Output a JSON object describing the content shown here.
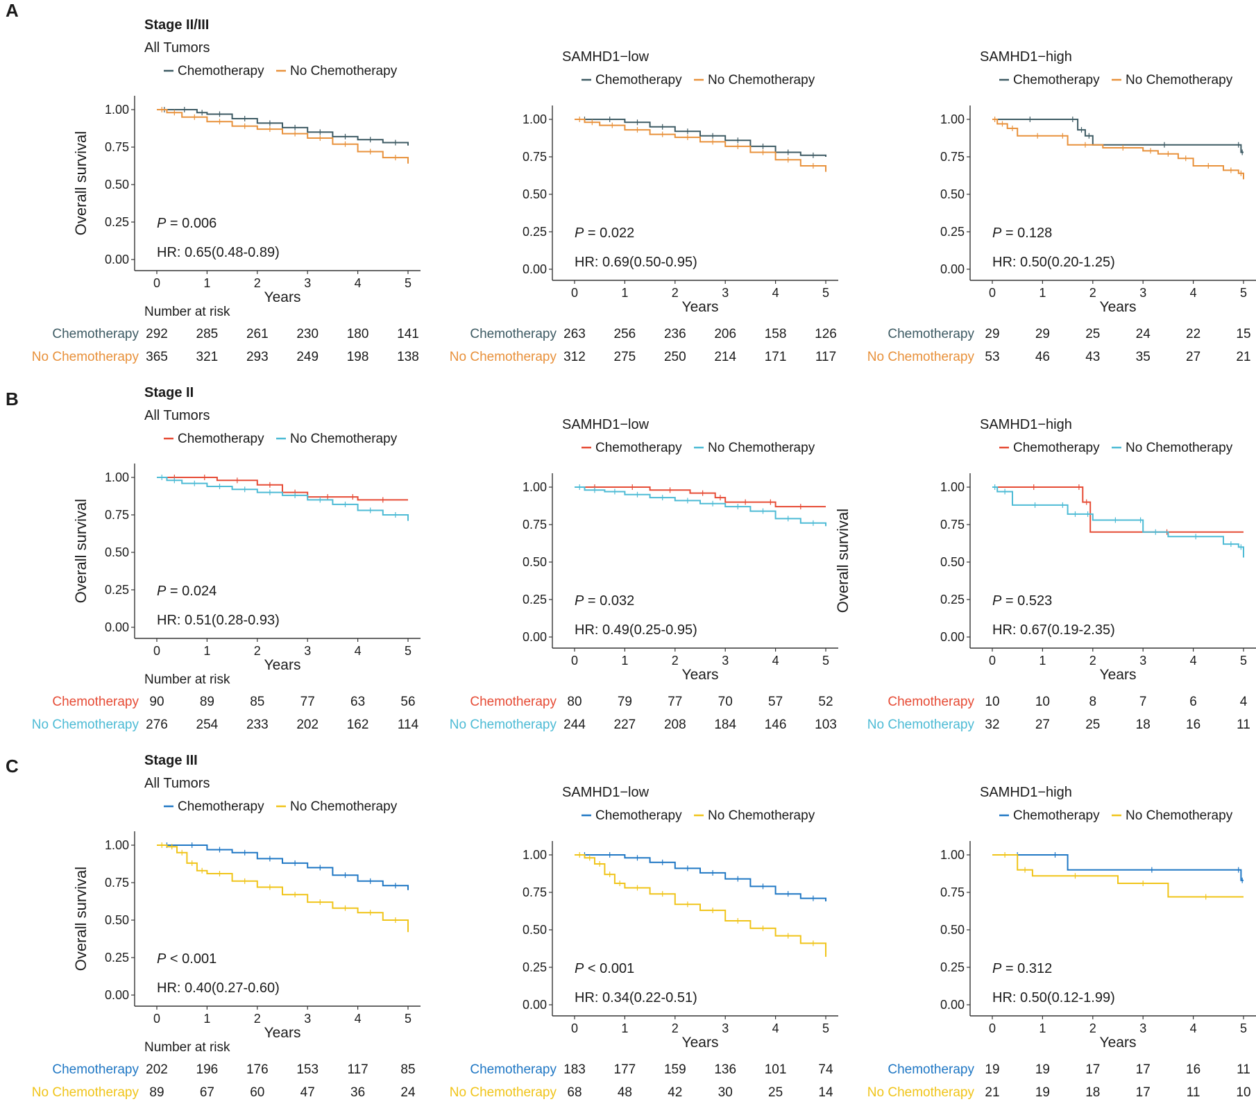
{
  "figure": {
    "panel_letters": [
      "A",
      "B",
      "C"
    ],
    "ylabel": "Overall survival",
    "xlabel": "Years",
    "risk_title": "Number at risk",
    "x_ticks": [
      "0",
      "1",
      "2",
      "3",
      "4",
      "5"
    ],
    "y_ticks": [
      "0.00",
      "0.25",
      "0.50",
      "0.75",
      "1.00"
    ]
  },
  "chart_data": [
    {
      "type": "line",
      "panel": "A",
      "stage_title": "Stage II/III",
      "subtitle": "All Tumors",
      "xlabel": "Years",
      "ylabel": "Overall survival",
      "xlim": [
        0,
        5
      ],
      "ylim": [
        0,
        1
      ],
      "legend": [
        "Chemotherapy",
        "No Chemotherapy"
      ],
      "colors": [
        "#3d5a63",
        "#e8913b"
      ],
      "p_prefix": "P",
      "p_value": " = 0.006",
      "hr": "HR: 0.65(0.48-0.89)",
      "series": [
        {
          "name": "Chemotherapy",
          "x": [
            0,
            0.3,
            0.8,
            1.0,
            1.5,
            2.0,
            2.5,
            3.0,
            3.5,
            4.0,
            4.5,
            5.0
          ],
          "y": [
            1.0,
            1.0,
            0.98,
            0.97,
            0.94,
            0.91,
            0.88,
            0.85,
            0.82,
            0.8,
            0.78,
            0.76
          ]
        },
        {
          "name": "No Chemotherapy",
          "x": [
            0,
            0.2,
            0.5,
            1.0,
            1.5,
            2.0,
            2.5,
            3.0,
            3.5,
            4.0,
            4.5,
            5.0
          ],
          "y": [
            1.0,
            0.98,
            0.95,
            0.92,
            0.89,
            0.87,
            0.84,
            0.81,
            0.77,
            0.72,
            0.68,
            0.64
          ]
        }
      ],
      "risk": {
        "labels": [
          "Chemotherapy",
          "No Chemotherapy"
        ],
        "rows": [
          [
            "292",
            "285",
            "261",
            "230",
            "180",
            "141"
          ],
          [
            "365",
            "321",
            "293",
            "249",
            "198",
            "138"
          ]
        ]
      }
    },
    {
      "type": "line",
      "panel": "A",
      "stage_title": "",
      "subtitle": "SAMHD1−low",
      "xlabel": "Years",
      "ylabel": "",
      "xlim": [
        0,
        5
      ],
      "ylim": [
        0,
        1
      ],
      "legend": [
        "Chemotherapy",
        "No Chemotherapy"
      ],
      "colors": [
        "#3d5a63",
        "#e8913b"
      ],
      "p_prefix": "P",
      "p_value": " = 0.022",
      "hr": "HR: 0.69(0.50-0.95)",
      "series": [
        {
          "name": "Chemotherapy",
          "x": [
            0,
            0.4,
            1.0,
            1.5,
            2.0,
            2.5,
            3.0,
            3.5,
            4.0,
            4.5,
            5.0
          ],
          "y": [
            1.0,
            1.0,
            0.98,
            0.95,
            0.92,
            0.89,
            0.86,
            0.82,
            0.78,
            0.76,
            0.75
          ]
        },
        {
          "name": "No Chemotherapy",
          "x": [
            0,
            0.2,
            0.5,
            1.0,
            1.5,
            2.0,
            2.5,
            3.0,
            3.5,
            4.0,
            4.5,
            5.0
          ],
          "y": [
            1.0,
            0.98,
            0.96,
            0.93,
            0.9,
            0.88,
            0.85,
            0.82,
            0.78,
            0.73,
            0.69,
            0.65
          ]
        }
      ],
      "risk": {
        "labels": [
          "Chemotherapy",
          "No Chemotherapy"
        ],
        "rows": [
          [
            "263",
            "256",
            "236",
            "206",
            "158",
            "126"
          ],
          [
            "312",
            "275",
            "250",
            "214",
            "171",
            "117"
          ]
        ]
      }
    },
    {
      "type": "line",
      "panel": "A",
      "stage_title": "",
      "subtitle": "SAMHD1−high",
      "xlabel": "Years",
      "ylabel": "",
      "xlim": [
        0,
        5
      ],
      "ylim": [
        0,
        1
      ],
      "legend": [
        "Chemotherapy",
        "No Chemotherapy"
      ],
      "colors": [
        "#3d5a63",
        "#e8913b"
      ],
      "p_prefix": "P",
      "p_value": " = 0.128",
      "hr": "HR: 0.50(0.20-1.25)",
      "series": [
        {
          "name": "Chemotherapy",
          "x": [
            0,
            1.5,
            1.7,
            1.85,
            2.0,
            4.85,
            4.95,
            5.0
          ],
          "y": [
            1.0,
            1.0,
            0.93,
            0.89,
            0.83,
            0.83,
            0.78,
            0.78
          ]
        },
        {
          "name": "No Chemotherapy",
          "x": [
            0,
            0.1,
            0.3,
            0.5,
            1.3,
            1.5,
            2.2,
            3.0,
            3.3,
            3.7,
            4.0,
            4.6,
            4.9,
            5.0
          ],
          "y": [
            1.0,
            0.97,
            0.94,
            0.89,
            0.89,
            0.83,
            0.81,
            0.79,
            0.77,
            0.74,
            0.69,
            0.66,
            0.64,
            0.6
          ]
        }
      ],
      "risk": {
        "labels": [
          "Chemotherapy",
          "No Chemotherapy"
        ],
        "rows": [
          [
            "29",
            "29",
            "25",
            "24",
            "22",
            "15"
          ],
          [
            "53",
            "46",
            "43",
            "35",
            "27",
            "21"
          ]
        ]
      }
    },
    {
      "type": "line",
      "panel": "B",
      "stage_title": "Stage II",
      "subtitle": "All Tumors",
      "xlabel": "Years",
      "ylabel": "Overall survival",
      "xlim": [
        0,
        5
      ],
      "ylim": [
        0,
        1
      ],
      "legend": [
        "Chemotherapy",
        "No Chemotherapy"
      ],
      "colors": [
        "#e64b35",
        "#4dbbd5"
      ],
      "p_prefix": "P",
      "p_value": " = 0.024",
      "hr": "HR: 0.51(0.28-0.93)",
      "series": [
        {
          "name": "Chemotherapy",
          "x": [
            0,
            0.7,
            1.2,
            2.0,
            2.5,
            3.0,
            3.8,
            4.0,
            5.0
          ],
          "y": [
            1.0,
            1.0,
            0.98,
            0.95,
            0.9,
            0.87,
            0.87,
            0.85,
            0.85
          ]
        },
        {
          "name": "No Chemotherapy",
          "x": [
            0,
            0.2,
            0.5,
            1.0,
            1.5,
            2.0,
            2.5,
            3.0,
            3.5,
            4.0,
            4.5,
            5.0
          ],
          "y": [
            1.0,
            0.98,
            0.96,
            0.94,
            0.92,
            0.9,
            0.88,
            0.85,
            0.82,
            0.78,
            0.75,
            0.71
          ]
        }
      ],
      "risk": {
        "labels": [
          "Chemotherapy",
          "No Chemotherapy"
        ],
        "rows": [
          [
            "90",
            "89",
            "85",
            "77",
            "63",
            "56"
          ],
          [
            "276",
            "254",
            "233",
            "202",
            "162",
            "114"
          ]
        ]
      }
    },
    {
      "type": "line",
      "panel": "B",
      "stage_title": "",
      "subtitle": "SAMHD1−low",
      "xlabel": "Years",
      "ylabel": "",
      "xlim": [
        0,
        5
      ],
      "ylim": [
        0,
        1
      ],
      "legend": [
        "Chemotherapy",
        "No Chemotherapy"
      ],
      "colors": [
        "#e64b35",
        "#4dbbd5"
      ],
      "p_prefix": "P",
      "p_value": " = 0.032",
      "hr": "HR: 0.49(0.25-0.95)",
      "series": [
        {
          "name": "Chemotherapy",
          "x": [
            0,
            0.8,
            1.5,
            2.3,
            2.8,
            3.0,
            3.8,
            4.0,
            5.0
          ],
          "y": [
            1.0,
            1.0,
            0.98,
            0.96,
            0.93,
            0.9,
            0.9,
            0.87,
            0.87
          ]
        },
        {
          "name": "No Chemotherapy",
          "x": [
            0,
            0.2,
            0.6,
            1.0,
            1.5,
            2.0,
            2.5,
            3.0,
            3.5,
            4.0,
            4.5,
            5.0
          ],
          "y": [
            1.0,
            0.98,
            0.97,
            0.95,
            0.93,
            0.91,
            0.89,
            0.87,
            0.84,
            0.79,
            0.76,
            0.74
          ]
        }
      ],
      "risk": {
        "labels": [
          "Chemotherapy",
          "No Chemotherapy"
        ],
        "rows": [
          [
            "80",
            "79",
            "77",
            "70",
            "57",
            "52"
          ],
          [
            "244",
            "227",
            "208",
            "184",
            "146",
            "103"
          ]
        ]
      }
    },
    {
      "type": "line",
      "panel": "B",
      "stage_title": "",
      "subtitle": "SAMHD1−high",
      "xlabel": "Years",
      "ylabel": "Overall survival",
      "xlim": [
        0,
        5
      ],
      "ylim": [
        0,
        1
      ],
      "legend": [
        "Chemotherapy",
        "No Chemotherapy"
      ],
      "colors": [
        "#e64b35",
        "#4dbbd5"
      ],
      "p_prefix": "P",
      "p_value": " = 0.523",
      "hr": "HR: 0.67(0.19-2.35)",
      "series": [
        {
          "name": "Chemotherapy",
          "x": [
            0,
            1.65,
            1.8,
            1.95,
            5.0
          ],
          "y": [
            1.0,
            1.0,
            0.9,
            0.7,
            0.7
          ]
        },
        {
          "name": "No Chemotherapy",
          "x": [
            0,
            0.1,
            0.4,
            1.3,
            1.5,
            1.8,
            2.0,
            2.9,
            3.0,
            3.5,
            4.6,
            4.9,
            5.0
          ],
          "y": [
            1.0,
            0.97,
            0.88,
            0.88,
            0.82,
            0.82,
            0.78,
            0.78,
            0.7,
            0.67,
            0.62,
            0.6,
            0.53
          ]
        }
      ],
      "risk": {
        "labels": [
          "Chemotherapy",
          "No Chemotherapy"
        ],
        "rows": [
          [
            "10",
            "10",
            "8",
            "7",
            "6",
            "4"
          ],
          [
            "32",
            "27",
            "25",
            "18",
            "16",
            "11"
          ]
        ]
      }
    },
    {
      "type": "line",
      "panel": "C",
      "stage_title": "Stage III",
      "subtitle": "All Tumors",
      "xlabel": "Years",
      "ylabel": "Overall survival",
      "xlim": [
        0,
        5
      ],
      "ylim": [
        0,
        1
      ],
      "legend": [
        "Chemotherapy",
        "No Chemotherapy"
      ],
      "colors": [
        "#1f77c4",
        "#f0c419"
      ],
      "p_prefix": "P",
      "p_value": " < 0.001",
      "hr": "HR: 0.40(0.27-0.60)",
      "series": [
        {
          "name": "Chemotherapy",
          "x": [
            0,
            0.4,
            1.0,
            1.5,
            2.0,
            2.5,
            3.0,
            3.5,
            4.0,
            4.5,
            5.0
          ],
          "y": [
            1.0,
            1.0,
            0.97,
            0.95,
            0.91,
            0.88,
            0.85,
            0.8,
            0.76,
            0.73,
            0.7
          ]
        },
        {
          "name": "No Chemotherapy",
          "x": [
            0,
            0.2,
            0.4,
            0.6,
            0.8,
            1.0,
            1.5,
            2.0,
            2.5,
            3.0,
            3.5,
            4.0,
            4.5,
            5.0
          ],
          "y": [
            1.0,
            0.99,
            0.95,
            0.88,
            0.83,
            0.81,
            0.76,
            0.72,
            0.67,
            0.62,
            0.58,
            0.55,
            0.5,
            0.42
          ]
        }
      ],
      "risk": {
        "labels": [
          "Chemotherapy",
          "No Chemotherapy"
        ],
        "rows": [
          [
            "202",
            "196",
            "176",
            "153",
            "117",
            "85"
          ],
          [
            "89",
            "67",
            "60",
            "47",
            "36",
            "24"
          ]
        ]
      }
    },
    {
      "type": "line",
      "panel": "C",
      "stage_title": "",
      "subtitle": "SAMHD1−low",
      "xlabel": "Years",
      "ylabel": "",
      "xlim": [
        0,
        5
      ],
      "ylim": [
        0,
        1
      ],
      "legend": [
        "Chemotherapy",
        "No Chemotherapy"
      ],
      "colors": [
        "#1f77c4",
        "#f0c419"
      ],
      "p_prefix": "P",
      "p_value": " < 0.001",
      "hr": "HR: 0.34(0.22-0.51)",
      "series": [
        {
          "name": "Chemotherapy",
          "x": [
            0,
            0.4,
            1.0,
            1.5,
            2.0,
            2.5,
            3.0,
            3.5,
            4.0,
            4.5,
            5.0
          ],
          "y": [
            1.0,
            1.0,
            0.98,
            0.95,
            0.91,
            0.88,
            0.84,
            0.79,
            0.74,
            0.71,
            0.69
          ]
        },
        {
          "name": "No Chemotherapy",
          "x": [
            0,
            0.2,
            0.4,
            0.6,
            0.8,
            1.0,
            1.5,
            2.0,
            2.5,
            3.0,
            3.5,
            4.0,
            4.5,
            5.0
          ],
          "y": [
            1.0,
            0.98,
            0.94,
            0.87,
            0.81,
            0.78,
            0.74,
            0.67,
            0.63,
            0.56,
            0.51,
            0.46,
            0.41,
            0.32
          ]
        }
      ],
      "risk": {
        "labels": [
          "Chemotherapy",
          "No Chemotherapy"
        ],
        "rows": [
          [
            "183",
            "177",
            "159",
            "136",
            "101",
            "74"
          ],
          [
            "68",
            "48",
            "42",
            "30",
            "25",
            "14"
          ]
        ]
      }
    },
    {
      "type": "line",
      "panel": "C",
      "stage_title": "",
      "subtitle": "SAMHD1−high",
      "xlabel": "Years",
      "ylabel": "",
      "xlim": [
        0,
        5
      ],
      "ylim": [
        0,
        1
      ],
      "legend": [
        "Chemotherapy",
        "No Chemotherapy"
      ],
      "colors": [
        "#1f77c4",
        "#f0c419"
      ],
      "p_prefix": "P",
      "p_value": " = 0.312",
      "hr": "HR: 0.50(0.12-1.99)",
      "series": [
        {
          "name": "Chemotherapy",
          "x": [
            0,
            1.0,
            1.5,
            4.85,
            4.95,
            5.0
          ],
          "y": [
            1.0,
            1.0,
            0.9,
            0.9,
            0.83,
            0.83
          ]
        },
        {
          "name": "No Chemotherapy",
          "x": [
            0,
            0.5,
            0.8,
            2.5,
            3.5,
            5.0
          ],
          "y": [
            1.0,
            0.9,
            0.86,
            0.81,
            0.72,
            0.72
          ]
        }
      ],
      "risk": {
        "labels": [
          "Chemotherapy",
          "No Chemotherapy"
        ],
        "rows": [
          [
            "19",
            "19",
            "17",
            "17",
            "16",
            "11"
          ],
          [
            "21",
            "19",
            "18",
            "17",
            "11",
            "10"
          ]
        ]
      }
    }
  ]
}
